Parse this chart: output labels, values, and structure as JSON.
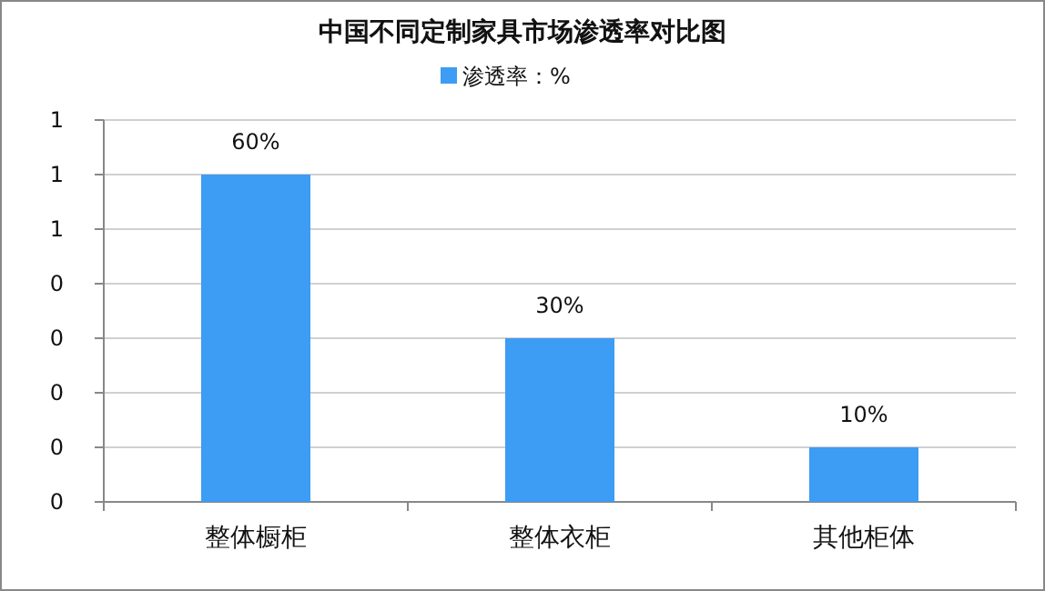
{
  "chart_data": {
    "type": "bar",
    "title": "中国不同定制家具市场渗透率对比图",
    "categories": [
      "整体橱柜",
      "整体衣柜",
      "其他柜体"
    ],
    "series": [
      {
        "name": "渗透率：%",
        "color": "#3d9cf3",
        "values": [
          0.6,
          0.3,
          0.1
        ]
      }
    ],
    "value_labels": [
      "60%",
      "30%",
      "10%"
    ],
    "ylim": [
      0,
      0.7
    ],
    "yticks": [
      {
        "value": 0,
        "label": "0"
      },
      {
        "value": 0.1,
        "label": "0"
      },
      {
        "value": 0.2,
        "label": "0"
      },
      {
        "value": 0.3,
        "label": "0"
      },
      {
        "value": 0.4,
        "label": "0"
      },
      {
        "value": 0.5,
        "label": "1"
      },
      {
        "value": 0.6,
        "label": "1"
      },
      {
        "value": 0.7,
        "label": "1"
      }
    ],
    "grid": "y",
    "legend": "top"
  }
}
